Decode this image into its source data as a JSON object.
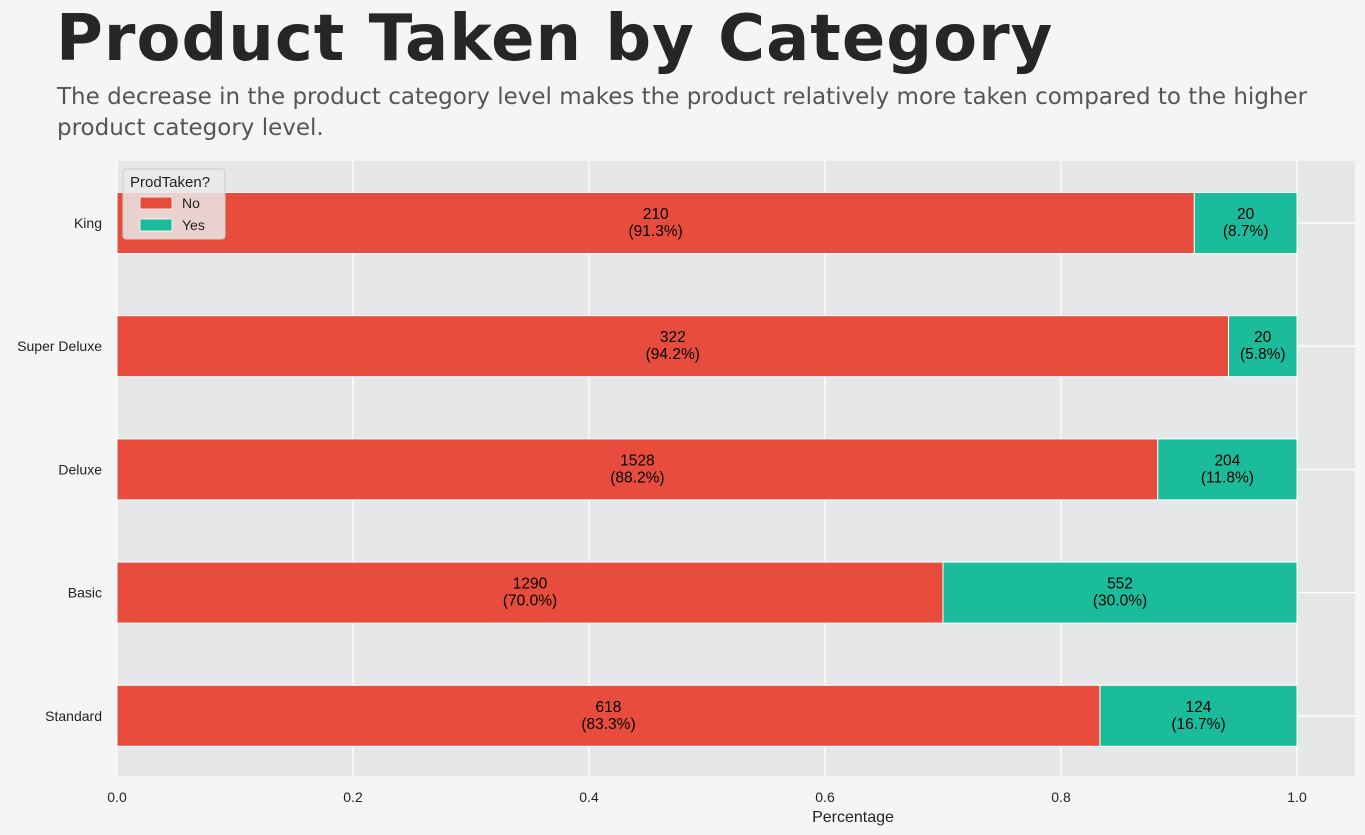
{
  "title": "Product Taken by Category",
  "subtitle": "The decrease in the product category level makes the product relatively more taken compared to the higher product category level.",
  "colors": {
    "no": "#e74c3c",
    "yes": "#1abc9c",
    "plot_bg": "#e6e7e9",
    "grid": "#ffffff"
  },
  "chart_data": {
    "type": "bar",
    "orientation": "horizontal",
    "stacked": true,
    "normalized": true,
    "categories": [
      "King",
      "Super Deluxe",
      "Deluxe",
      "Basic",
      "Standard"
    ],
    "series": [
      {
        "name": "No",
        "counts": [
          210,
          322,
          1528,
          1290,
          618
        ],
        "values": [
          0.913,
          0.942,
          0.882,
          0.7,
          0.833
        ],
        "labels": [
          "(91.3%)",
          "(94.2%)",
          "(88.2%)",
          "(70.0%)",
          "(83.3%)"
        ]
      },
      {
        "name": "Yes",
        "counts": [
          20,
          20,
          204,
          552,
          124
        ],
        "values": [
          0.087,
          0.058,
          0.118,
          0.3,
          0.167
        ],
        "labels": [
          "(8.7%)",
          "(5.8%)",
          "(11.8%)",
          "(30.0%)",
          "(16.7%)"
        ]
      }
    ],
    "xlabel": "Percentage",
    "ylabel": "",
    "xlim": [
      0,
      1.05
    ],
    "xticks": [
      "0.0",
      "0.2",
      "0.4",
      "0.6",
      "0.8",
      "1.0"
    ],
    "grid": true,
    "legend": {
      "title": "ProdTaken?",
      "placement": "top-left"
    }
  }
}
